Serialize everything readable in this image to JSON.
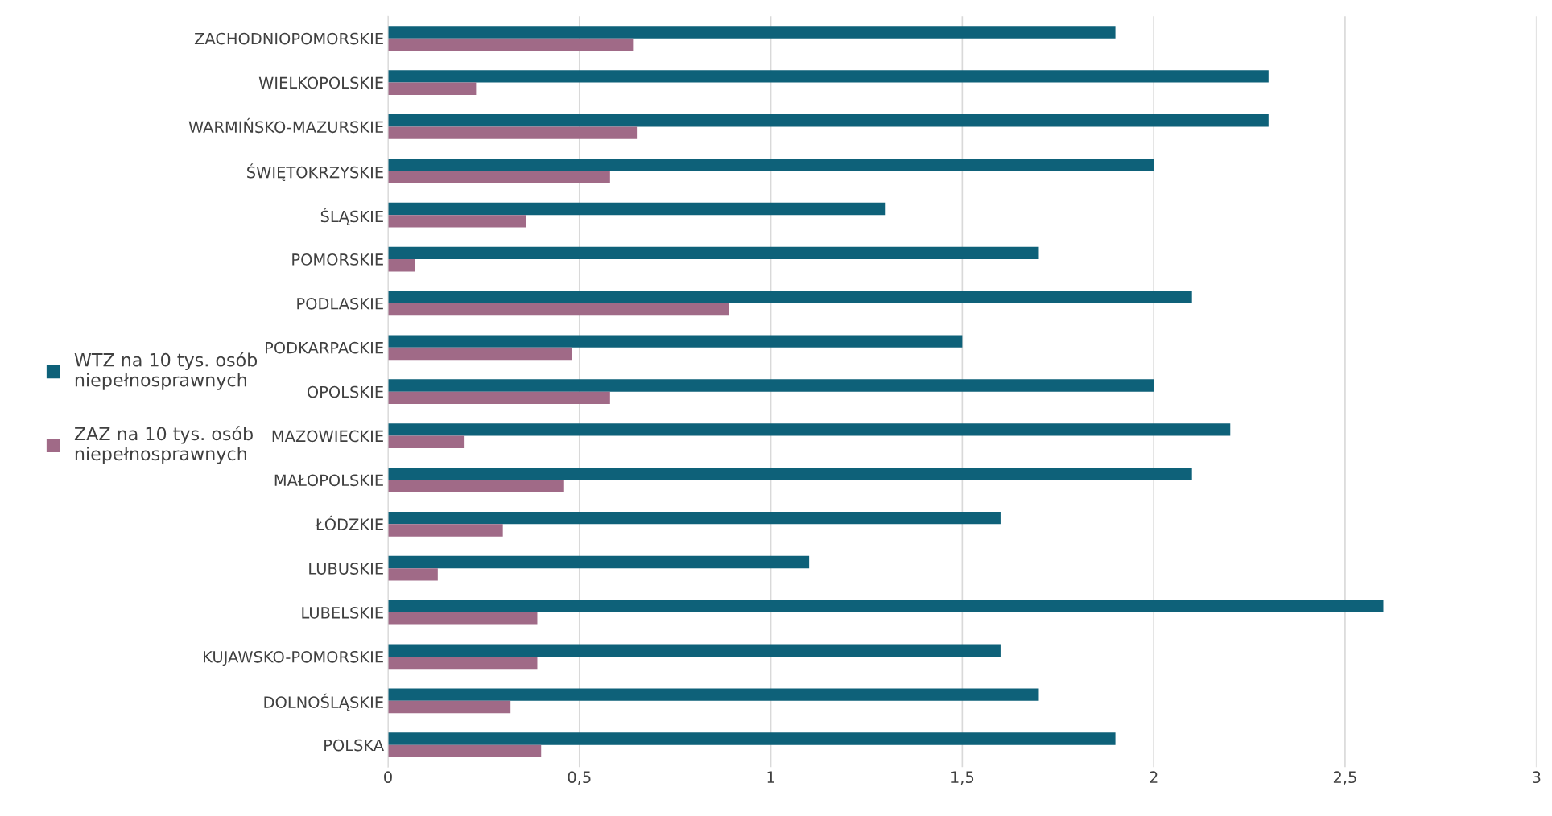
{
  "chart_data": {
    "type": "bar",
    "orientation": "horizontal",
    "categories": [
      "ZACHODNIOPOMORSKIE",
      "WIELKOPOLSKIE",
      "WARMIŃSKO-MAZURSKIE",
      "ŚWIĘTOKRZYSKIE",
      "ŚLĄSKIE",
      "POMORSKIE",
      "PODLASKIE",
      "PODKARPACKIE",
      "OPOLSKIE",
      "MAZOWIECKIE",
      "MAŁOPOLSKIE",
      "ŁÓDZKIE",
      "LUBUSKIE",
      "LUBELSKIE",
      "KUJAWSKO-POMORSKIE",
      "DOLNOŚLĄSKIE",
      "POLSKA"
    ],
    "series": [
      {
        "name": "WTZ na 10 tys. osób niepełnosprawnych",
        "color": "#0e6179",
        "values": [
          1.9,
          2.3,
          2.3,
          2.0,
          1.3,
          1.7,
          2.1,
          1.5,
          2.0,
          2.2,
          2.1,
          1.6,
          1.1,
          2.6,
          1.6,
          1.7,
          1.9
        ]
      },
      {
        "name": "ZAZ na 10 tys. osób niepełnosprawnych",
        "color": "#a06a87",
        "values": [
          0.64,
          0.23,
          0.65,
          0.58,
          0.36,
          0.07,
          0.89,
          0.48,
          0.58,
          0.2,
          0.46,
          0.3,
          0.13,
          0.39,
          0.39,
          0.32,
          0.4
        ]
      }
    ],
    "xlim": [
      0,
      3
    ],
    "xticks": [
      0,
      {
        "value": 0.5,
        "label": "0,5"
      },
      1,
      {
        "value": 1.5,
        "label": "1,5"
      },
      2,
      {
        "value": 2.5,
        "label": "2,5"
      },
      3
    ],
    "grid": "x",
    "legend": "left"
  }
}
